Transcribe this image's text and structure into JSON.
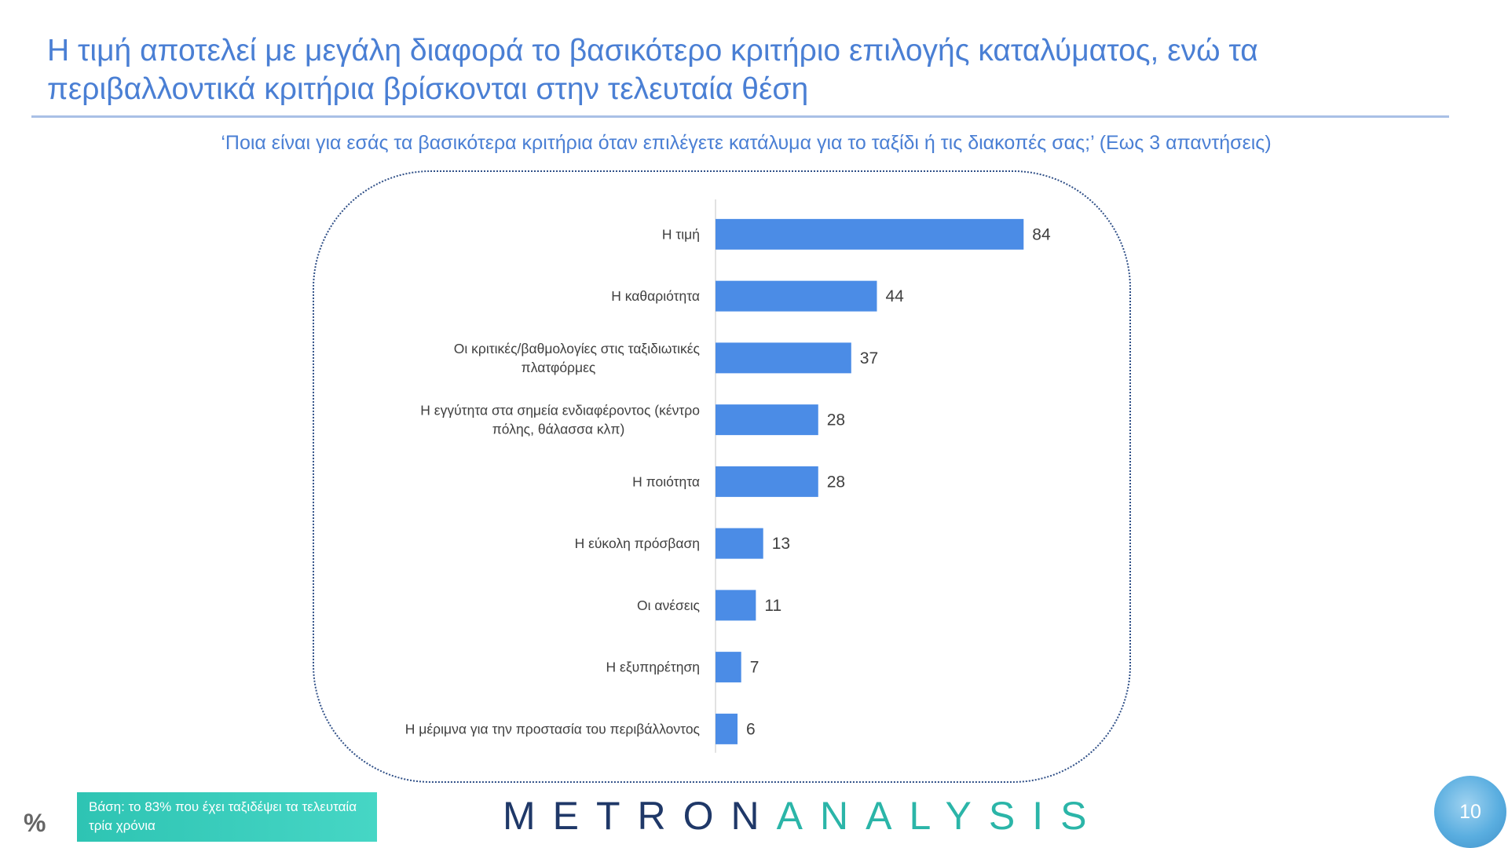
{
  "slide": {
    "title": "Η τιμή αποτελεί με μεγάλη διαφορά το βασικότερο κριτήριο επιλογής καταλύματος, ενώ τα περιβαλλοντικά κριτήρια βρίσκονται στην τελευταία θέση",
    "subtitle": "‘Ποια είναι για εσάς τα βασικότερα κριτήρια όταν επιλέγετε κατάλυμα για το ταξίδι ή τις διακοπές σας;’ (Εως 3 απαντήσεις)",
    "base_note": "Βάση: το 83% που έχει ταξιδέψει τα τελευταία τρία χρόνια",
    "percent_symbol": "%",
    "logo_part1": "METRON",
    "logo_part2": "ANALYSIS",
    "page_number": "10"
  },
  "colors": {
    "bar": "#4b8ce6",
    "title": "#4a7fd4",
    "logo_dark": "#1f3868",
    "logo_teal": "#2bb5a8"
  },
  "chart_data": {
    "type": "bar",
    "orientation": "horizontal",
    "categories": [
      [
        "Η τιμή"
      ],
      [
        "Η καθαριότητα"
      ],
      [
        "Οι κριτικές/βαθμολογίες στις ταξιδιωτικές",
        "πλατφόρμες"
      ],
      [
        "Η εγγύτητα στα σημεία ενδιαφέροντος (κέντρο",
        "πόλης, θάλασσα κλπ)"
      ],
      [
        "Η ποιότητα"
      ],
      [
        "Η εύκολη πρόσβαση"
      ],
      [
        "Οι ανέσεις"
      ],
      [
        "Η εξυπηρέτηση"
      ],
      [
        "Η μέριμνα για την προστασία του περιβάλλοντος"
      ]
    ],
    "values": [
      84,
      44,
      37,
      28,
      28,
      13,
      11,
      7,
      6
    ],
    "xlim": [
      0,
      100
    ],
    "grid": false,
    "data_labels": true
  }
}
